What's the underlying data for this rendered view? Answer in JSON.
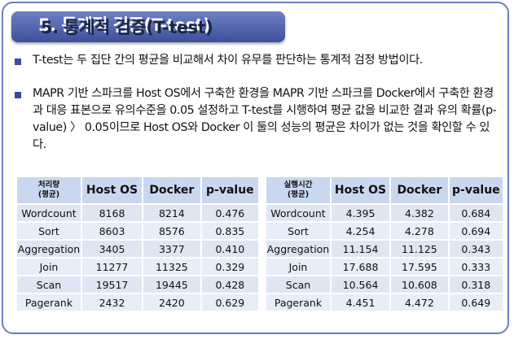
{
  "title": "5. 통계적 검증(T-test)",
  "bullets": [
    "T-test는 두 집단 간의 평균을 비교해서 차이 유무를 판단하는 통계적 검정 방법이다.",
    "MAPR 기반 스파크를 Host OS에서 구축한 환경을 MAPR 기반 스파크를 Docker에서 구축한 환경과 대응 표본으로  유의수준을 0.05 설정하고  T-test를 시행하여  평균 값을 비교한 결과 유의 확률(p-value) 〉 0.05이므로 Host OS와 Docker 이 둘의 성능의 평균은 차이가 없는 것을 확인할 수 있다."
  ],
  "table_left": {
    "headers": [
      "처리량\n(평균)",
      "Host OS",
      "Docker",
      "p-value"
    ],
    "rows": [
      [
        "Wordcount",
        "8168",
        "8214",
        "0.476"
      ],
      [
        "Sort",
        "8603",
        "8576",
        "0.835"
      ],
      [
        "Aggregation",
        "3405",
        "3377",
        "0.410"
      ],
      [
        "Join",
        "11277",
        "11325",
        "0.329"
      ],
      [
        "Scan",
        "19517",
        "19445",
        "0.428"
      ],
      [
        "Pagerank",
        "2432",
        "2420",
        "0.629"
      ]
    ]
  },
  "table_right": {
    "headers": [
      "실행시간\n(평균)",
      "Host OS",
      "Docker",
      "p-value"
    ],
    "rows": [
      [
        "Wordcount",
        "4.395",
        "4.382",
        "0.684"
      ],
      [
        "Sort",
        "4.254",
        "4.278",
        "0.694"
      ],
      [
        "Aggregation",
        "11.154",
        "11.125",
        "0.343"
      ],
      [
        "Join",
        "17.688",
        "17.595",
        "0.333"
      ],
      [
        "Scan",
        "10.564",
        "10.608",
        "0.318"
      ],
      [
        "Pagerank",
        "4.451",
        "4.472",
        "0.649"
      ]
    ]
  },
  "colors": {
    "title_bar": "#4a5ca8",
    "border": "#6c7fc0",
    "header_cell": "#c9d8f0",
    "body_cell": "#dee6f4"
  }
}
